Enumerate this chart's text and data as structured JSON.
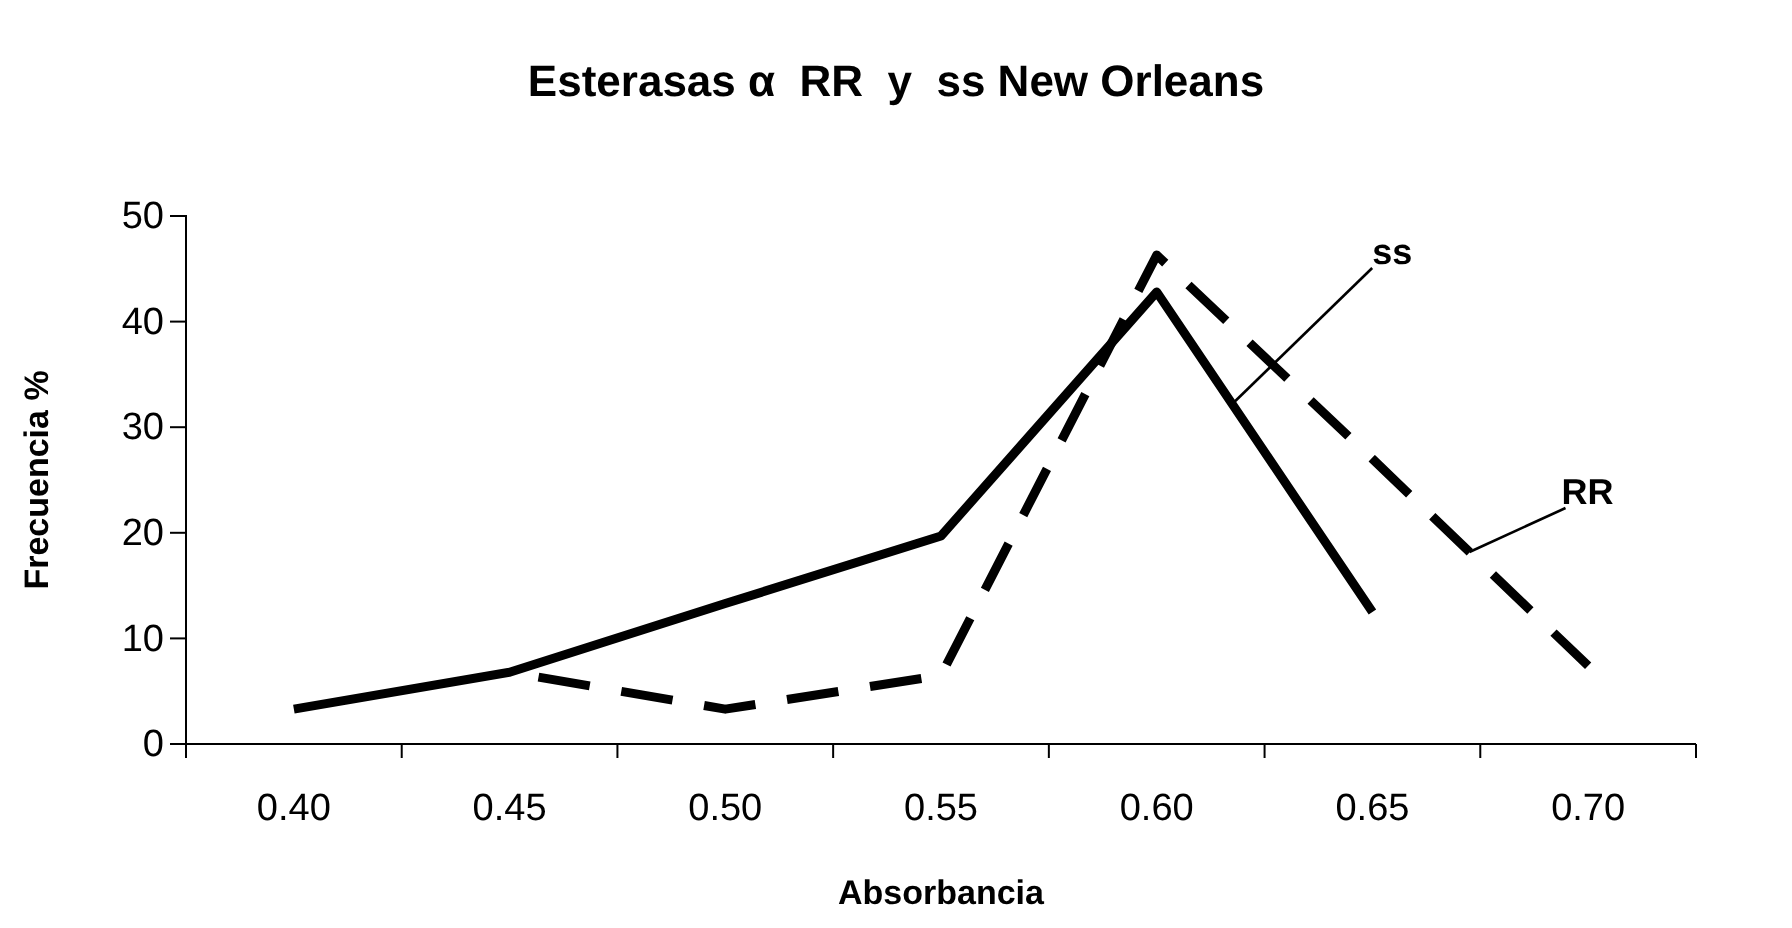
{
  "chart_data": {
    "type": "line",
    "title": "Esterasas α  RR  y  ss New Orleans",
    "xlabel": "Absorbancia",
    "ylabel": "Frecuencia %",
    "categories": [
      "0.40",
      "0.45",
      "0.50",
      "0.55",
      "0.60",
      "0.65",
      "0.70"
    ],
    "series": [
      {
        "name": "ss",
        "color": "#000000",
        "line_style": "solid",
        "values": [
          3.3,
          6.8,
          13.3,
          19.7,
          42.8,
          12.5,
          null
        ]
      },
      {
        "name": "RR",
        "color": "#000000",
        "line_style": "dashed",
        "values": [
          null,
          6.8,
          3.3,
          6.5,
          46.3,
          27,
          7.4
        ]
      }
    ],
    "ylim": [
      0,
      50
    ],
    "yticks": [
      0,
      10,
      20,
      30,
      40,
      50
    ],
    "grid": false,
    "legend": false,
    "marker": "none"
  }
}
